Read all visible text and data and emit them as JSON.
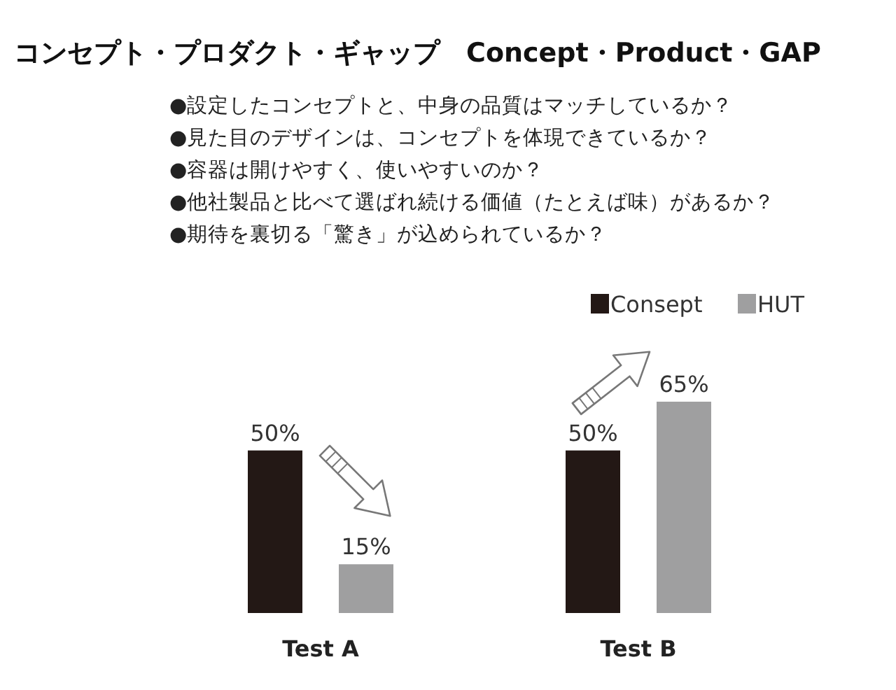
{
  "chart_data": {
    "type": "bar",
    "title": "コンセプト・プロダクト・ギャップ　Concept・Product・GAP",
    "annotations": [
      "●設定したコンセプトと、中身の品質はマッチしているか？",
      "●見た目のデザインは、コンセプトを体現できているか？",
      "●容器は開けやすく、使いやすいのか？",
      "●他社製品と比べて選ばれ続ける価値（たとえば味）があるか？",
      "●期待を裏切る「驚き」が込められているか？"
    ],
    "categories": [
      "Test A",
      "Test B"
    ],
    "series": [
      {
        "name": "Consept",
        "color": "#231815",
        "values": [
          50,
          50
        ],
        "value_labels": [
          "50%",
          "50%"
        ]
      },
      {
        "name": "HUT",
        "color": "#9f9fa0",
        "values": [
          15,
          65
        ],
        "value_labels": [
          "15%",
          "65%"
        ]
      }
    ],
    "legend": "top right"
  }
}
